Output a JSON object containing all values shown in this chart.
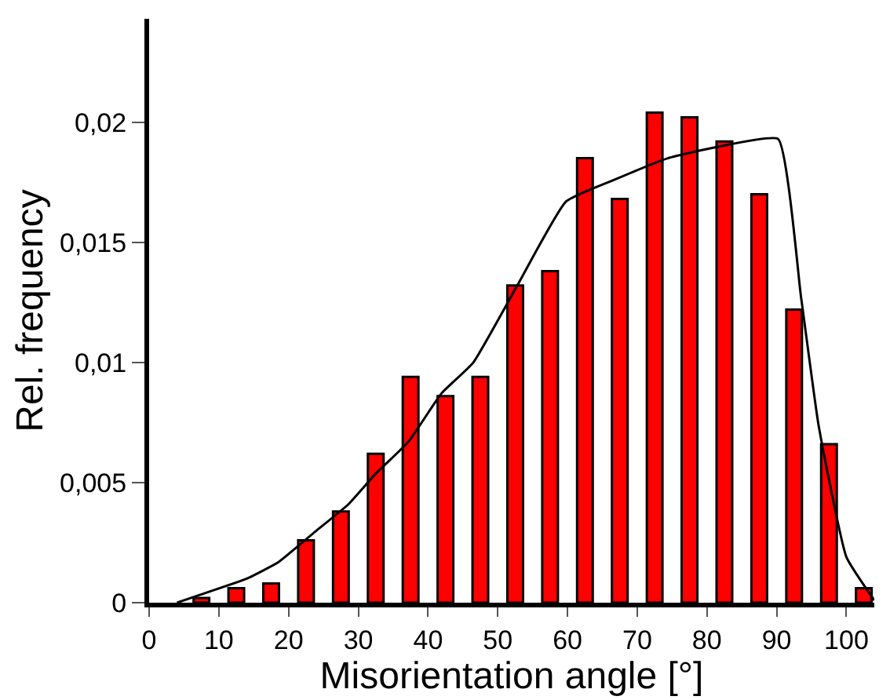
{
  "chart_data": {
    "type": "histogram",
    "xlabel": "Misorientation angle [°]",
    "ylabel": "Rel. frequency",
    "bins": [
      0,
      5,
      10,
      15,
      20,
      25,
      30,
      35,
      40,
      45,
      50,
      55,
      60,
      65,
      70,
      75,
      80,
      85,
      90,
      95,
      100,
      105
    ],
    "series": [
      {
        "color": "#ff0000",
        "values": [
          null,
          0.0002,
          0.0006,
          0.0008,
          0.0026,
          0.0038,
          0.0062,
          0.0094,
          0.0086,
          0.0094,
          0.0132,
          0.0138,
          0.0185,
          0.0168,
          0.0204,
          0.0202,
          0.0192,
          0.017,
          0.0122,
          0.0066,
          0.0006
        ]
      },
      {
        "type": "line",
        "color": "#000000",
        "x": [
          4,
          7,
          14,
          18.6,
          24,
          28.6,
          32.6,
          37.2,
          41.9,
          46.5,
          52.8,
          59.8,
          66.7,
          74.4,
          82,
          90.2,
          93.5,
          96,
          100,
          104
        ],
        "values": [
          0,
          0.0003,
          0.001,
          0.0017,
          0.003,
          0.0041,
          0.0054,
          0.0067,
          0.0087,
          0.01,
          0.0132,
          0.0167,
          0.0176,
          0.0185,
          0.019,
          0.0193,
          0.0127,
          0.0074,
          0.0019,
          0.0001
        ]
      }
    ],
    "xlim": [
      0,
      104
    ],
    "ylim": [
      0,
      0.0243
    ],
    "xticks": [
      0,
      10,
      20,
      30,
      40,
      50,
      60,
      70,
      80,
      90,
      100
    ],
    "yticks": [
      {
        "value": 0,
        "label": "0"
      },
      {
        "value": 0.005,
        "label": "0,005"
      },
      {
        "value": 0.01,
        "label": "0,01"
      },
      {
        "value": 0.015,
        "label": "0,015"
      },
      {
        "value": 0.02,
        "label": "0,02"
      }
    ],
    "marker": "none",
    "line_style": "solid"
  }
}
